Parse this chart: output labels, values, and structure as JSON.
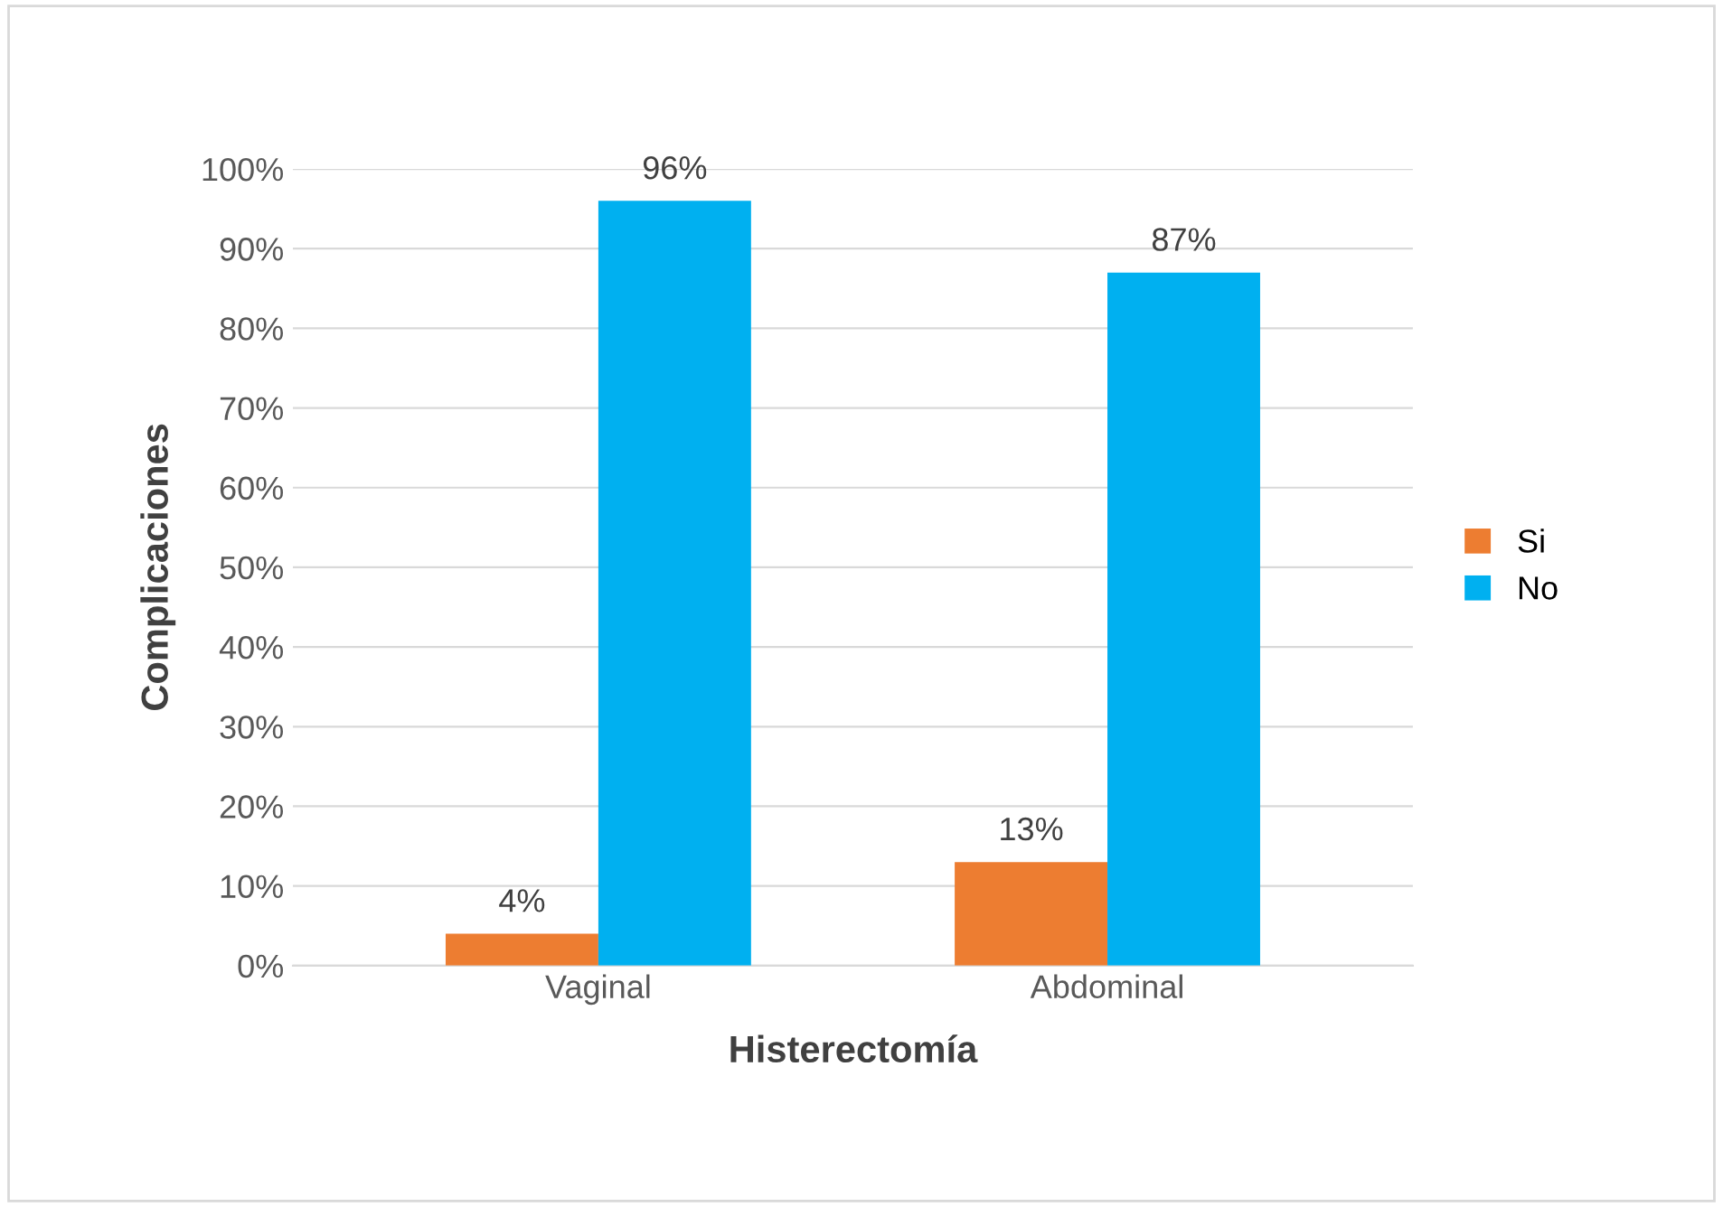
{
  "chart_data": {
    "type": "bar",
    "categories": [
      "Vaginal",
      "Abdominal"
    ],
    "series": [
      {
        "name": "Si",
        "color": "#ed7d31",
        "values": [
          4,
          13
        ],
        "value_labels": [
          "4%",
          "13%"
        ]
      },
      {
        "name": "No",
        "color": "#00b0f0",
        "values": [
          96,
          87
        ],
        "value_labels": [
          "96%",
          "87%"
        ]
      }
    ],
    "xlabel": "Histerectomía",
    "ylabel": "Complicaciones",
    "ylim": [
      0,
      100
    ],
    "yticks": [
      {
        "value": 0,
        "label": "0%"
      },
      {
        "value": 10,
        "label": "10%"
      },
      {
        "value": 20,
        "label": "20%"
      },
      {
        "value": 30,
        "label": "30%"
      },
      {
        "value": 40,
        "label": "40%"
      },
      {
        "value": 50,
        "label": "50%"
      },
      {
        "value": 60,
        "label": "60%"
      },
      {
        "value": 70,
        "label": "70%"
      },
      {
        "value": 80,
        "label": "80%"
      },
      {
        "value": 90,
        "label": "90%"
      },
      {
        "value": 100,
        "label": "100%"
      }
    ],
    "grid": "y",
    "legend": "right"
  }
}
